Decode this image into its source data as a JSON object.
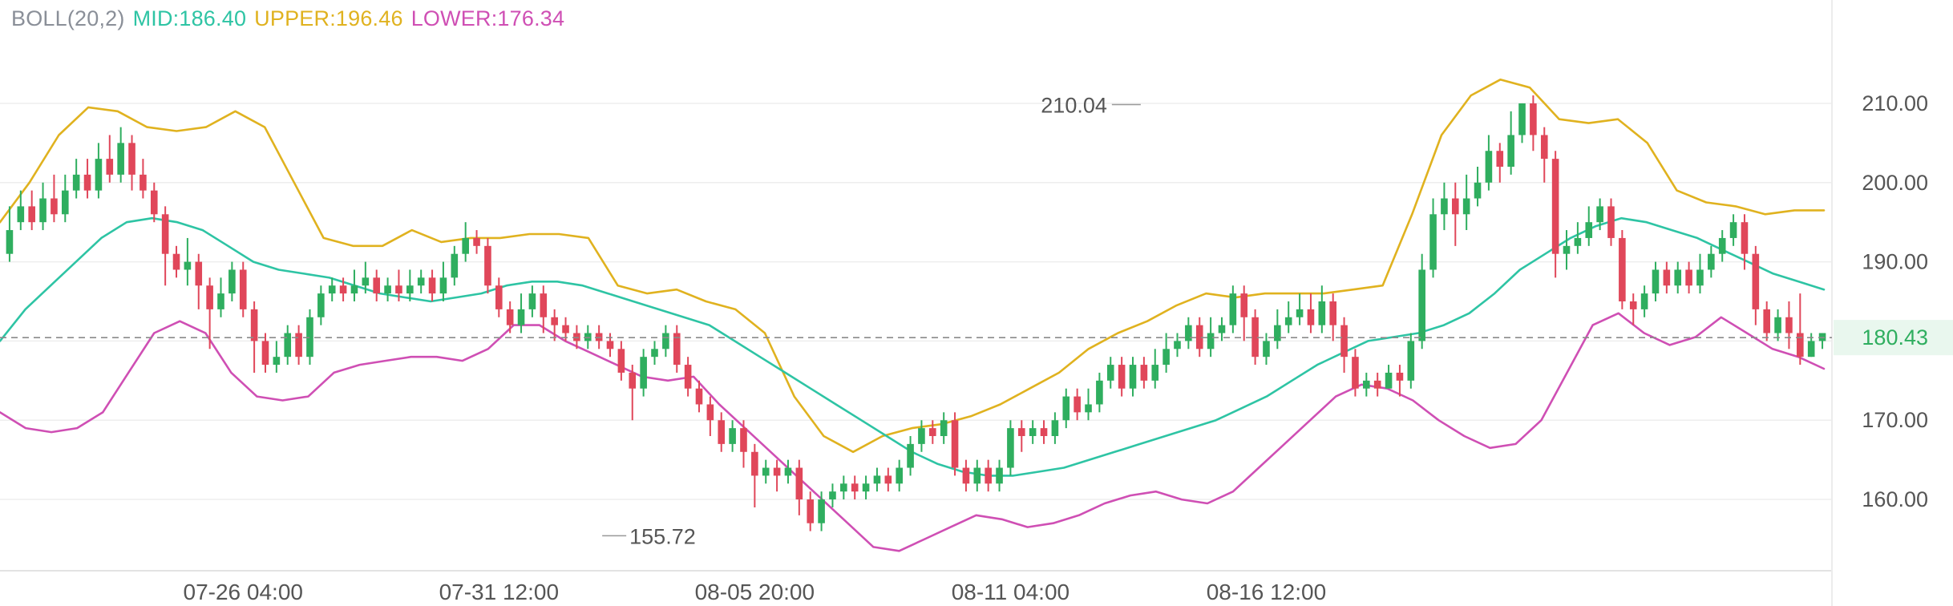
{
  "legend": {
    "name": "BOLL(20,2)",
    "mid_label": "MID:",
    "mid_value": "186.40",
    "upper_label": "UPPER:",
    "upper_value": "196.46",
    "lower_label": "LOWER:",
    "lower_value": "176.34"
  },
  "colors": {
    "up": "#2fae5f",
    "down": "#e0475a",
    "mid": "#2ec4a4",
    "upper": "#e0b21f",
    "lower": "#cf4fb4",
    "grid": "#eeeeee",
    "axis_text": "#555555",
    "last_price": "#2fae5f"
  },
  "chart_data": {
    "type": "candlestick",
    "indicator": "BOLL(20,2)",
    "ylim": [
      151,
      219
    ],
    "y_ticks": [
      "160.00",
      "170.00",
      "180.00",
      "190.00",
      "200.00",
      "210.00"
    ],
    "y_tick_values": [
      160,
      170,
      180,
      190,
      200,
      210
    ],
    "x_ticks": [
      "07-26 04:00",
      "07-31 12:00",
      "08-05 20:00",
      "08-11 04:00",
      "08-16 12:00"
    ],
    "x_tick_index": [
      21,
      44,
      67,
      90,
      113
    ],
    "last_price": "180.43",
    "last_price_value": 180.43,
    "max_label": "210.04",
    "max_value": 210.04,
    "max_index": 102,
    "min_label": "155.72",
    "min_value": 155.72,
    "min_index": 53,
    "candles": [
      [
        191,
        194,
        197,
        190
      ],
      [
        195,
        197,
        199,
        194
      ],
      [
        197,
        195,
        199,
        194
      ],
      [
        195,
        198,
        200,
        194
      ],
      [
        198,
        196,
        201,
        195
      ],
      [
        196,
        199,
        201,
        195
      ],
      [
        199,
        201,
        203,
        198
      ],
      [
        201,
        199,
        203,
        198
      ],
      [
        199,
        203,
        205,
        198
      ],
      [
        203,
        201,
        206,
        200
      ],
      [
        201,
        205,
        207,
        200
      ],
      [
        205,
        201,
        206,
        199
      ],
      [
        201,
        199,
        203,
        198
      ],
      [
        199,
        196,
        200,
        195
      ],
      [
        196,
        191,
        197,
        187
      ],
      [
        191,
        189,
        192,
        188
      ],
      [
        189,
        190,
        193,
        187
      ],
      [
        190,
        187,
        191,
        184
      ],
      [
        187,
        184,
        188,
        179
      ],
      [
        184,
        186,
        188,
        183
      ],
      [
        186,
        189,
        190,
        185
      ],
      [
        189,
        184,
        190,
        183
      ],
      [
        184,
        180,
        185,
        176
      ],
      [
        180,
        177,
        181,
        176
      ],
      [
        177,
        178,
        180,
        176
      ],
      [
        178,
        181,
        182,
        177
      ],
      [
        181,
        178,
        182,
        177
      ],
      [
        178,
        183,
        184,
        177
      ],
      [
        183,
        186,
        187,
        182
      ],
      [
        186,
        187,
        188,
        185
      ],
      [
        187,
        186,
        188,
        185
      ],
      [
        186,
        187,
        189,
        185
      ],
      [
        187,
        188,
        190,
        186
      ],
      [
        188,
        186,
        189,
        185
      ],
      [
        186,
        187,
        188,
        185
      ],
      [
        187,
        186,
        189,
        185
      ],
      [
        186,
        187,
        189,
        185
      ],
      [
        187,
        188,
        189,
        186
      ],
      [
        188,
        186,
        189,
        185
      ],
      [
        186,
        188,
        190,
        185
      ],
      [
        188,
        191,
        192,
        187
      ],
      [
        191,
        193,
        195,
        190
      ],
      [
        193,
        192,
        194,
        191
      ],
      [
        192,
        187,
        193,
        186
      ],
      [
        187,
        184,
        188,
        183
      ],
      [
        184,
        182,
        185,
        181
      ],
      [
        182,
        184,
        186,
        181
      ],
      [
        184,
        186,
        187,
        183
      ],
      [
        186,
        183,
        187,
        181
      ],
      [
        183,
        182,
        184,
        180
      ],
      [
        182,
        181,
        183,
        180
      ],
      [
        181,
        180,
        182,
        179
      ],
      [
        180,
        181,
        182,
        179
      ],
      [
        181,
        180,
        182,
        179
      ],
      [
        180,
        179,
        181,
        178
      ],
      [
        179,
        176,
        180,
        175
      ],
      [
        176,
        174,
        177,
        170
      ],
      [
        174,
        178,
        179,
        173
      ],
      [
        178,
        179,
        180,
        177
      ],
      [
        179,
        181,
        182,
        178
      ],
      [
        181,
        177,
        182,
        176
      ],
      [
        177,
        174,
        178,
        173
      ],
      [
        174,
        172,
        175,
        171
      ],
      [
        172,
        170,
        173,
        168
      ],
      [
        170,
        167,
        171,
        166
      ],
      [
        167,
        169,
        170,
        166
      ],
      [
        169,
        166,
        170,
        164
      ],
      [
        166,
        163,
        167,
        159
      ],
      [
        163,
        164,
        165,
        162
      ],
      [
        164,
        163,
        165,
        161
      ],
      [
        163,
        164,
        165,
        162
      ],
      [
        164,
        160,
        165,
        158
      ],
      [
        160,
        157,
        161,
        156
      ],
      [
        157,
        160,
        161,
        156
      ],
      [
        160,
        161,
        162,
        159
      ],
      [
        161,
        162,
        163,
        160
      ],
      [
        162,
        161,
        163,
        160
      ],
      [
        161,
        162,
        163,
        160
      ],
      [
        162,
        163,
        164,
        161
      ],
      [
        163,
        162,
        164,
        161
      ],
      [
        162,
        164,
        165,
        161
      ],
      [
        164,
        167,
        168,
        163
      ],
      [
        167,
        169,
        170,
        166
      ],
      [
        169,
        168,
        170,
        167
      ],
      [
        168,
        170,
        171,
        167
      ],
      [
        170,
        164,
        171,
        163
      ],
      [
        164,
        162,
        165,
        161
      ],
      [
        162,
        164,
        165,
        161
      ],
      [
        164,
        162,
        165,
        161
      ],
      [
        162,
        164,
        165,
        161
      ],
      [
        164,
        169,
        170,
        163
      ],
      [
        169,
        168,
        170,
        166
      ],
      [
        168,
        169,
        170,
        167
      ],
      [
        169,
        168,
        170,
        167
      ],
      [
        168,
        170,
        171,
        167
      ],
      [
        170,
        173,
        174,
        169
      ],
      [
        173,
        171,
        174,
        170
      ],
      [
        171,
        172,
        174,
        170
      ],
      [
        172,
        175,
        176,
        171
      ],
      [
        175,
        177,
        178,
        174
      ],
      [
        177,
        174,
        178,
        173
      ],
      [
        174,
        177,
        178,
        173
      ],
      [
        177,
        175,
        178,
        174
      ],
      [
        175,
        177,
        179,
        174
      ],
      [
        177,
        179,
        181,
        176
      ],
      [
        179,
        180,
        181,
        178
      ],
      [
        180,
        182,
        183,
        179
      ],
      [
        182,
        179,
        183,
        178
      ],
      [
        179,
        181,
        183,
        178
      ],
      [
        181,
        182,
        183,
        180
      ],
      [
        182,
        186,
        187,
        181
      ],
      [
        186,
        183,
        187,
        180
      ],
      [
        183,
        178,
        184,
        177
      ],
      [
        178,
        180,
        181,
        177
      ],
      [
        180,
        182,
        184,
        179
      ],
      [
        182,
        183,
        185,
        181
      ],
      [
        183,
        184,
        186,
        182
      ],
      [
        184,
        182,
        186,
        181
      ],
      [
        182,
        185,
        187,
        181
      ],
      [
        185,
        182,
        186,
        180
      ],
      [
        182,
        178,
        183,
        176
      ],
      [
        178,
        174,
        179,
        173
      ],
      [
        174,
        175,
        176,
        173
      ],
      [
        175,
        174,
        176,
        173
      ],
      [
        174,
        176,
        177,
        174
      ],
      [
        176,
        175,
        177,
        173
      ],
      [
        175,
        180,
        181,
        174
      ],
      [
        180,
        189,
        191,
        179
      ],
      [
        189,
        196,
        198,
        188
      ],
      [
        196,
        198,
        200,
        194
      ],
      [
        198,
        196,
        200,
        192
      ],
      [
        196,
        198,
        201,
        194
      ],
      [
        198,
        200,
        202,
        197
      ],
      [
        200,
        204,
        206,
        199
      ],
      [
        204,
        202,
        205,
        200
      ],
      [
        202,
        206,
        209,
        201
      ],
      [
        206,
        210,
        210,
        205
      ],
      [
        210,
        206,
        211,
        204
      ],
      [
        206,
        203,
        207,
        200
      ],
      [
        203,
        191,
        204,
        188
      ],
      [
        191,
        192,
        194,
        189
      ],
      [
        192,
        193,
        195,
        191
      ],
      [
        193,
        195,
        197,
        192
      ],
      [
        195,
        197,
        198,
        194
      ],
      [
        197,
        193,
        198,
        192
      ],
      [
        193,
        185,
        194,
        184
      ],
      [
        185,
        184,
        186,
        182
      ],
      [
        184,
        186,
        187,
        183
      ],
      [
        186,
        189,
        190,
        185
      ],
      [
        189,
        187,
        190,
        186
      ],
      [
        187,
        189,
        190,
        186
      ],
      [
        189,
        187,
        190,
        186
      ],
      [
        187,
        189,
        191,
        186
      ],
      [
        189,
        191,
        192,
        188
      ],
      [
        191,
        193,
        194,
        190
      ],
      [
        193,
        195,
        196,
        192
      ],
      [
        195,
        191,
        196,
        189
      ],
      [
        191,
        184,
        192,
        182
      ],
      [
        184,
        181,
        185,
        180
      ],
      [
        181,
        183,
        184,
        180
      ],
      [
        183,
        181,
        185,
        179
      ],
      [
        181,
        178,
        186,
        177
      ],
      [
        178,
        180,
        181,
        178
      ],
      [
        180,
        181,
        181,
        179
      ]
    ],
    "mid_line": [
      180,
      184,
      187,
      190,
      193,
      195,
      195.5,
      195,
      194,
      192,
      190,
      189,
      188.5,
      188,
      187,
      186,
      185.5,
      185,
      185.5,
      186,
      187,
      187.5,
      187.5,
      187,
      186,
      185,
      184,
      183,
      182,
      180,
      178,
      176,
      174,
      172,
      170,
      168,
      166,
      164.5,
      163.5,
      163,
      163,
      163.5,
      164,
      165,
      166,
      167,
      168,
      169,
      170,
      171.5,
      173,
      175,
      177,
      178.5,
      180,
      180.5,
      181,
      182,
      183.5,
      186,
      189,
      191,
      193,
      194.5,
      195.5,
      195,
      194,
      193,
      191.5,
      190,
      188.5,
      187.5,
      186.5
    ],
    "upper_line": [
      195,
      200,
      206,
      209.5,
      209,
      207,
      206.5,
      207,
      209,
      207,
      200,
      193,
      192,
      192,
      194,
      192.5,
      193,
      193,
      193.5,
      193.5,
      193,
      187,
      186,
      186.5,
      185,
      184,
      181,
      173,
      168,
      166,
      168,
      169,
      169.5,
      170.5,
      172,
      174,
      176,
      179,
      181,
      182.5,
      184.5,
      186,
      185.5,
      186,
      186,
      186,
      186.5,
      187,
      196,
      206,
      211,
      213,
      212,
      208,
      207.5,
      208,
      205,
      199,
      197.5,
      197,
      196,
      196.5,
      196.5
    ],
    "lower_line": [
      171,
      169,
      168.5,
      169,
      171,
      176,
      181,
      182.5,
      181,
      176,
      173,
      172.5,
      173,
      176,
      177,
      177.5,
      178,
      178,
      177.5,
      179,
      182,
      182,
      180,
      178.5,
      177,
      175.5,
      175,
      175.5,
      172,
      169,
      166,
      163,
      160,
      157,
      154,
      153.5,
      155,
      156.5,
      158,
      157.5,
      156.5,
      157,
      158,
      159.5,
      160.5,
      161,
      160,
      159.5,
      161,
      164,
      167,
      170,
      173,
      174.5,
      174,
      172.5,
      170,
      168,
      166.5,
      167,
      170,
      176,
      182,
      183.5,
      181,
      179.5,
      180.5,
      183,
      181,
      179,
      178,
      176.5
    ]
  }
}
